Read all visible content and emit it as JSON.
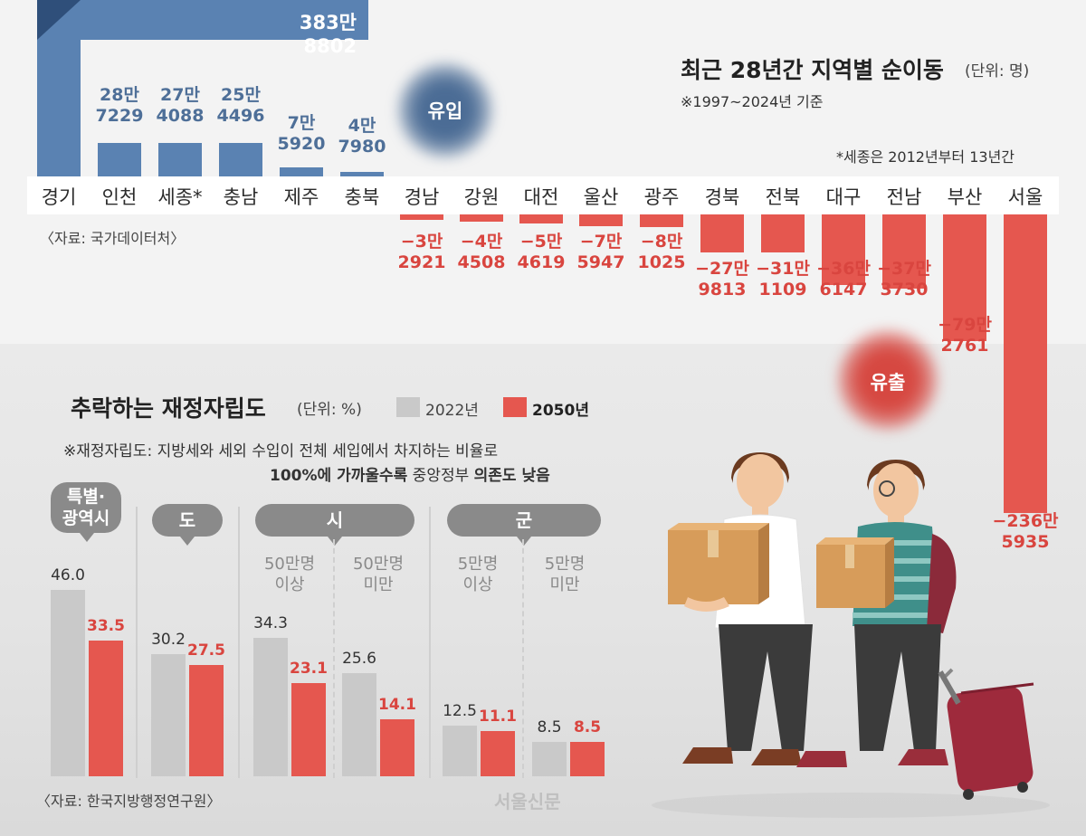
{
  "migration": {
    "title": "최근 28년간 지역별 순이동",
    "unit": "(단위: 명)",
    "note_period": "※1997~2024년 기준",
    "note_sejong": "*세종은 2012년부터 13년간",
    "source": "〈자료: 국가데이터처〉",
    "inflow_label": "유입",
    "outflow_label": "유출",
    "regions": [
      "경기",
      "인천",
      "세종*",
      "충남",
      "제주",
      "충북",
      "경남",
      "강원",
      "대전",
      "울산",
      "광주",
      "경북",
      "전북",
      "대구",
      "전남",
      "부산",
      "서울"
    ],
    "value_labels": [
      "383만 8802",
      "28만\n7229",
      "27만\n4088",
      "25만\n4496",
      "7만\n5920",
      "4만\n7980",
      "−3만\n2921",
      "−4만\n4508",
      "−5만\n4619",
      "−7만\n5947",
      "−8만\n1025",
      "−27만\n9813",
      "−31만\n1109",
      "−36만\n6147",
      "−37만\n3730",
      "−79만\n2761",
      "−236만\n5935"
    ]
  },
  "finance": {
    "title": "추락하는 재정자립도",
    "unit": "(단위: %)",
    "legend_2022": "2022년",
    "legend_2050": "2050년",
    "note_line1": "※재정자립도: 지방세와 세외 수입이 전체 세입에서 차지하는 비율로",
    "note_line2_bold1": "100%에 가까울수록",
    "note_line2_mid": " 중앙정부 ",
    "note_line2_bold2": "의존도 낮음",
    "source": "〈자료: 한국지방행정연구원〉",
    "categories": {
      "metro": "특별·\n광역시",
      "province": "도",
      "city": "시",
      "county": "군"
    },
    "subgroups": {
      "city_large": "50만명\n이상",
      "city_small": "50만명\n미만",
      "county_large": "5만명\n이상",
      "county_small": "5만명\n미만"
    },
    "value_labels_2022": [
      "46.0",
      "30.2",
      "34.3",
      "25.6",
      "12.5",
      "8.5"
    ],
    "value_labels_2050": [
      "33.5",
      "27.5",
      "23.1",
      "14.1",
      "11.1",
      "8.5"
    ]
  },
  "logo": "서울신문",
  "chart_data": [
    {
      "type": "bar",
      "title": "최근 28년간 지역별 순이동",
      "unit": "명",
      "categories": [
        "경기",
        "인천",
        "세종*",
        "충남",
        "제주",
        "충북",
        "경남",
        "강원",
        "대전",
        "울산",
        "광주",
        "경북",
        "전북",
        "대구",
        "전남",
        "부산",
        "서울"
      ],
      "values": [
        3838802,
        287229,
        274088,
        254496,
        75920,
        47980,
        -32921,
        -44508,
        -54619,
        -75947,
        -81025,
        -279813,
        -311109,
        -366147,
        -373730,
        -792761,
        -2365935
      ]
    },
    {
      "type": "bar",
      "title": "추락하는 재정자립도",
      "unit": "%",
      "categories": [
        "특별·광역시",
        "도",
        "시 50만명 이상",
        "시 50만명 미만",
        "군 5만명 이상",
        "군 5만명 미만"
      ],
      "series": [
        {
          "name": "2022년",
          "values": [
            46.0,
            30.2,
            34.3,
            25.6,
            12.5,
            8.5
          ]
        },
        {
          "name": "2050년",
          "values": [
            33.5,
            27.5,
            23.1,
            14.1,
            11.1,
            8.5
          ]
        }
      ],
      "colors": {
        "2022": "#c9c9c9",
        "2050": "#e5574f"
      }
    }
  ]
}
